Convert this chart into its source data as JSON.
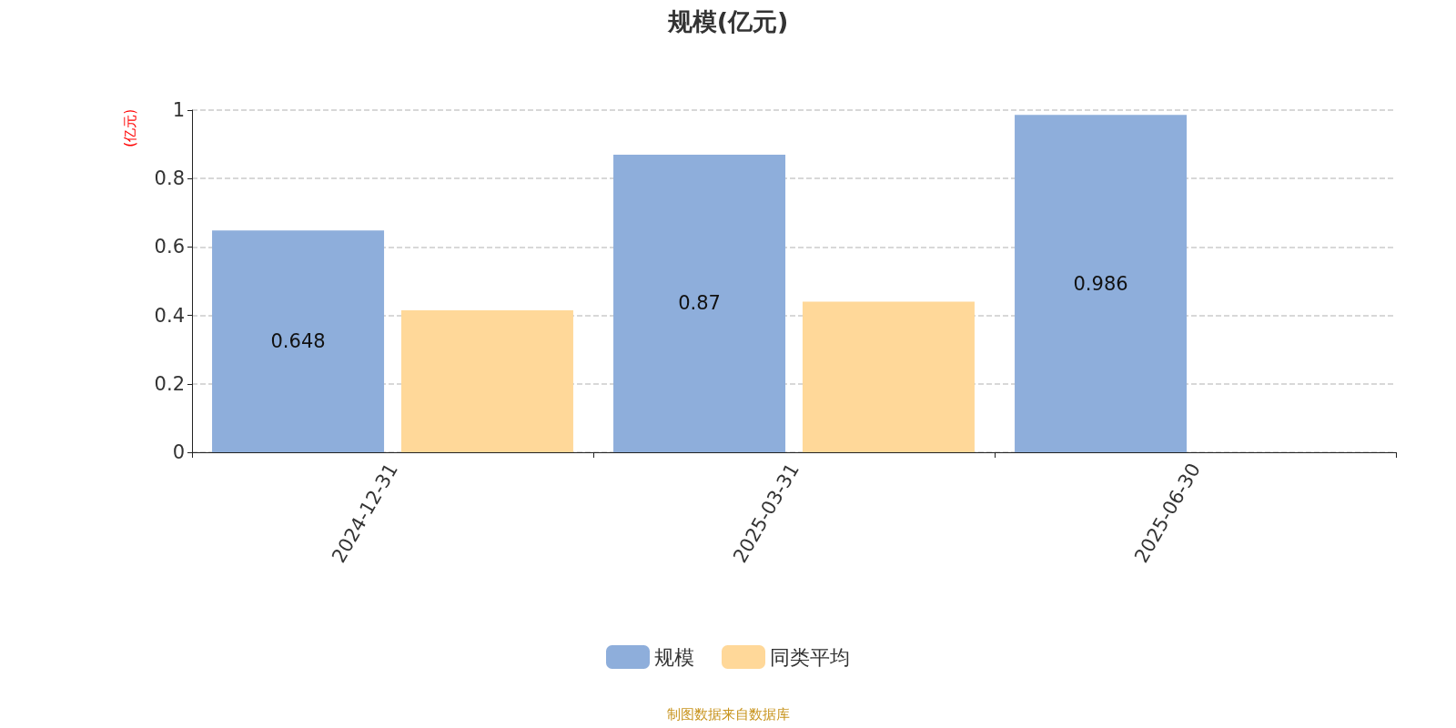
{
  "chart_data": {
    "type": "bar",
    "title": "规模(亿元)",
    "ylabel": "(亿元)",
    "categories": [
      "2024-12-31",
      "2025-03-31",
      "2025-06-30"
    ],
    "series": [
      {
        "name": "规模",
        "color": "#8eaedb",
        "values": [
          0.648,
          0.87,
          0.986
        ],
        "value_labels": [
          "0.648",
          "0.87",
          "0.986"
        ]
      },
      {
        "name": "同类平均",
        "color": "#ffd899",
        "values": [
          0.415,
          0.44,
          null
        ]
      }
    ],
    "ylim": [
      0,
      1
    ],
    "yticks": [
      0,
      0.2,
      0.4,
      0.6,
      0.8,
      1
    ],
    "grid": "y",
    "legend": "bottom",
    "annotations": [
      "制图数据来自数据库"
    ]
  }
}
